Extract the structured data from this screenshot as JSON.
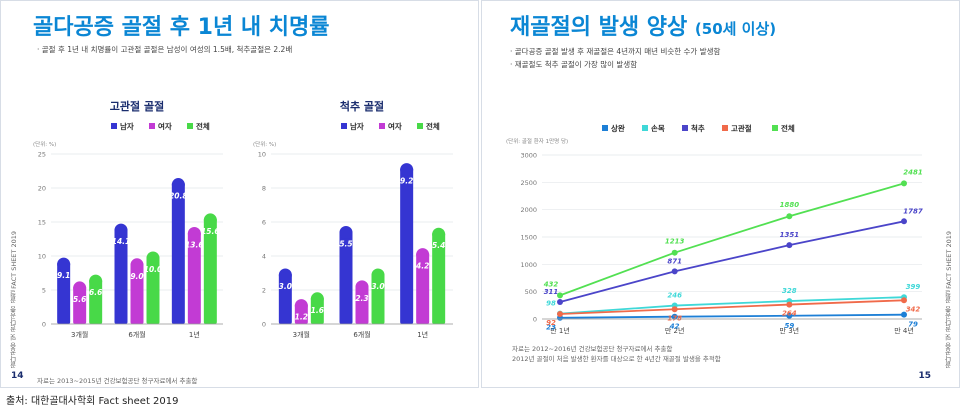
{
  "left": {
    "title": "골다공증 골절 후 1년 내 치명률",
    "bullet": "골절 후 1년 내 치명률이 고관절 골절은 남성이 여성의 1.5배, 척추골절은 2.2배",
    "side_note": "골다공증 및 골다공증 골절 FACT SHEET 2019",
    "page_number": "14",
    "source": "자료는 2013~2015년 건강보험공단 청구자료에서 추출함"
  },
  "right": {
    "title": "재골절의 발생 양상",
    "title_suffix": "(50세 이상)",
    "bullets": [
      "골다공증 골절 발생 후 재골절은 4년까지 매년 비슷한 수가 발생함",
      "재골절도 척추 골절이 가장 많이 발생함"
    ],
    "side_note": "골다공증 및 골다공증 골절 FACT SHEET 2019",
    "page_number": "15",
    "source_lines": [
      "자료는 2012~2016년 건강보험공단 청구자료에서 추출함",
      "2012년 골절이 처음 발생한 환자를 대상으로 한 4년간 재골절 발생을 추적함"
    ]
  },
  "caption": "출처: 대한골대사학회 Fact sheet 2019",
  "chart_data": [
    {
      "type": "bar",
      "title": "고관절 골절",
      "ylabel": "(단위: %)",
      "ylim": [
        0,
        25
      ],
      "yticks": [
        "0",
        "5",
        "10",
        "15",
        "20",
        "25"
      ],
      "categories": [
        "3개월",
        "6개월",
        "1년"
      ],
      "series": [
        {
          "name": "남자",
          "color": "#3535d2",
          "values": [
            9.1,
            14.1,
            20.8
          ],
          "labels": [
            "9.1",
            "14.1",
            "20.8"
          ]
        },
        {
          "name": "여자",
          "color": "#c23bd4",
          "values": [
            5.6,
            9.0,
            13.6
          ],
          "labels": [
            "5.6",
            "9.0",
            "13.6"
          ]
        },
        {
          "name": "전체",
          "color": "#48d948",
          "values": [
            6.6,
            10.0,
            15.6
          ],
          "labels": [
            "6.6",
            "10.0",
            "15.6"
          ]
        }
      ]
    },
    {
      "type": "bar",
      "title": "척추 골절",
      "ylabel": "(단위: %)",
      "ylim": [
        0,
        10
      ],
      "yticks": [
        "0",
        "2",
        "4",
        "6",
        "8",
        "10"
      ],
      "categories": [
        "3개월",
        "6개월",
        "1년"
      ],
      "series": [
        {
          "name": "남자",
          "color": "#3535d2",
          "values": [
            3.0,
            5.5,
            9.2
          ],
          "labels": [
            "3.0",
            "5.5",
            "9.2"
          ]
        },
        {
          "name": "여자",
          "color": "#c23bd4",
          "values": [
            1.2,
            2.3,
            4.2
          ],
          "labels": [
            "1.2",
            "2.3",
            "4.2"
          ]
        },
        {
          "name": "전체",
          "color": "#48d948",
          "values": [
            1.6,
            3.0,
            5.4
          ],
          "labels": [
            "1.6",
            "3.0",
            "5.4"
          ]
        }
      ]
    },
    {
      "type": "line",
      "title": "재골절의 발생 양상",
      "ylabel": "(단위: 골절 환자 1만명 당)",
      "ylim": [
        0,
        3000
      ],
      "yticks": [
        "0",
        "500",
        "1000",
        "1500",
        "2000",
        "2500",
        "3000"
      ],
      "categories": [
        "만 1년",
        "만 2년",
        "만 3년",
        "만 4년"
      ],
      "series": [
        {
          "name": "상완",
          "color": "#1d7fd6",
          "values": [
            23,
            42,
            59,
            79
          ],
          "labels": [
            "23",
            "42",
            "59",
            "79"
          ]
        },
        {
          "name": "손목",
          "color": "#3fd8d8",
          "values": [
            98,
            246,
            328,
            399
          ],
          "labels": [
            "98",
            "246",
            "328",
            "399"
          ]
        },
        {
          "name": "척추",
          "color": "#4b45c9",
          "values": [
            311,
            871,
            1351,
            1787
          ],
          "labels": [
            "311",
            "871",
            "1351",
            "1787"
          ]
        },
        {
          "name": "고관절",
          "color": "#f06a4a",
          "values": [
            92,
            178,
            264,
            342
          ],
          "labels": [
            "92",
            "178",
            "264",
            "342"
          ]
        },
        {
          "name": "전체",
          "color": "#52e052",
          "values": [
            432,
            1213,
            1880,
            2481
          ],
          "labels": [
            "432",
            "1213",
            "1880",
            "2481"
          ]
        }
      ]
    }
  ]
}
